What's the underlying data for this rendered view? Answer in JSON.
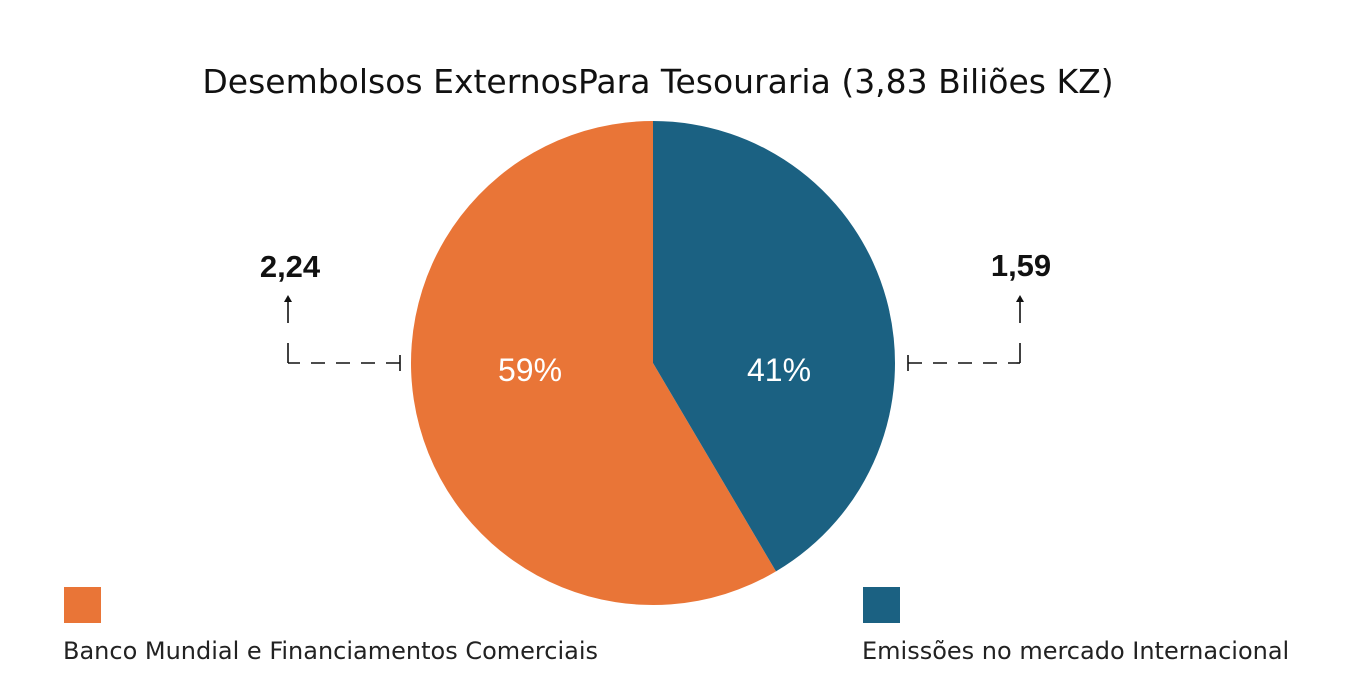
{
  "chart_data": {
    "type": "pie",
    "title": "Desembolsos ExternosPara Tesouraria (3,83 Biliões KZ)",
    "slices": [
      {
        "name": "Banco Mundial e Financiamentos Comerciais",
        "value": 2.24,
        "value_label": "2,24",
        "percent": 59,
        "percent_label": "59%",
        "color": "#E97537"
      },
      {
        "name": "Emissões no mercado Internacional",
        "value": 1.59,
        "value_label": "1,59",
        "percent": 41,
        "percent_label": "41%",
        "color": "#1B6182"
      }
    ],
    "legend_position": "bottom"
  }
}
